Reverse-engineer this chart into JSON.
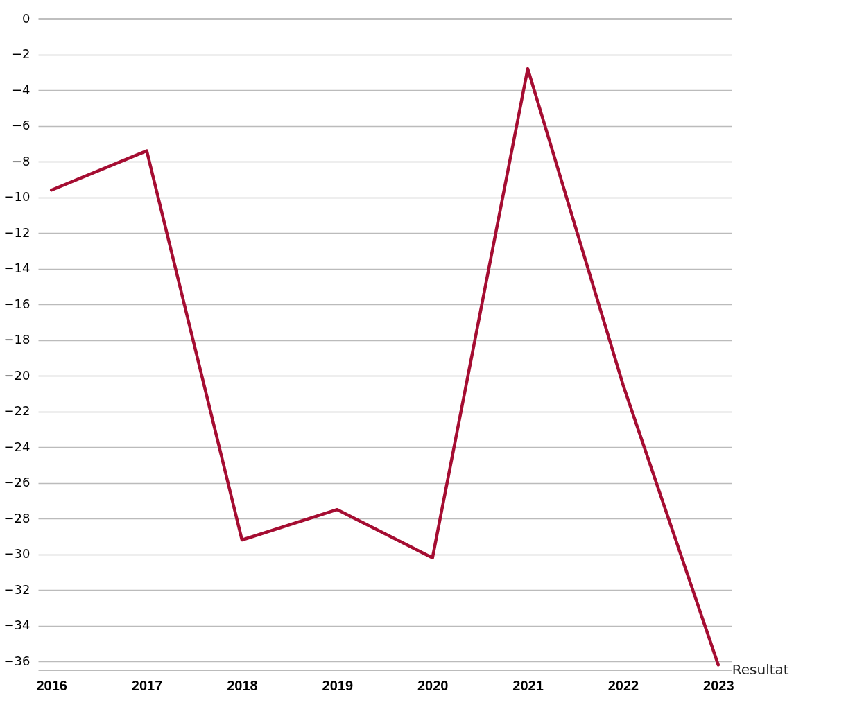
{
  "chart_data": {
    "type": "line",
    "categories": [
      "2016",
      "2017",
      "2018",
      "2019",
      "2020",
      "2021",
      "2022",
      "2023"
    ],
    "series": [
      {
        "name": "Resultat",
        "color": "#a50d32",
        "values": [
          -9.6,
          -7.4,
          -29.2,
          -27.5,
          -30.2,
          -2.8,
          -20.5,
          -36.2
        ]
      }
    ],
    "ylim": [
      -36.5,
      0
    ],
    "yticks": [
      0,
      -2,
      -4,
      -6,
      -8,
      -10,
      -12,
      -14,
      -16,
      -18,
      -20,
      -22,
      -24,
      -26,
      -28,
      -30,
      -32,
      -34,
      -36
    ],
    "grid": "y"
  }
}
